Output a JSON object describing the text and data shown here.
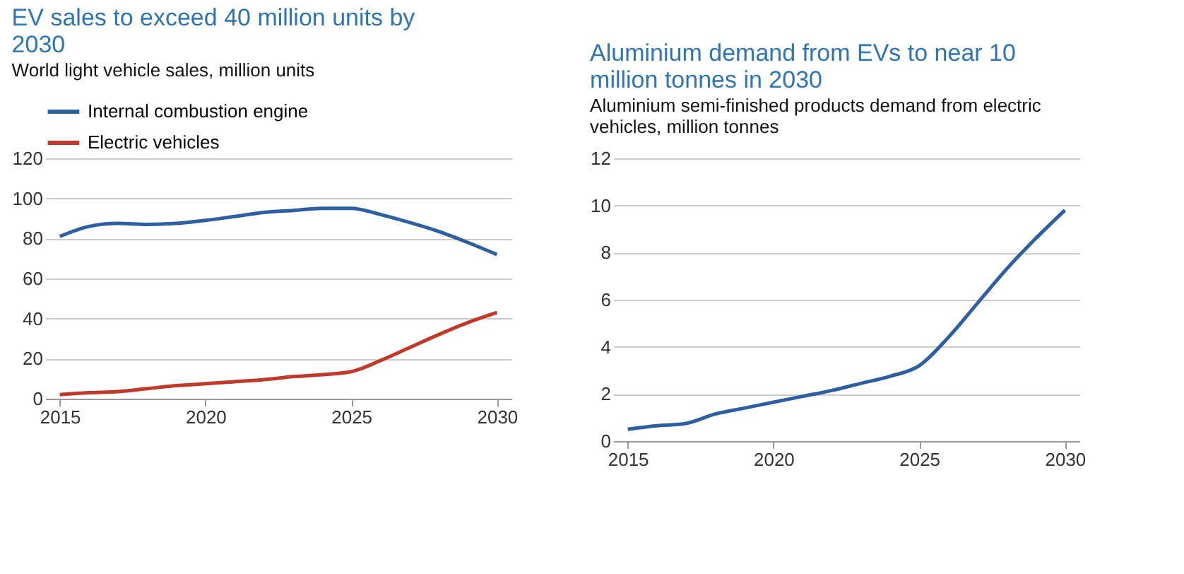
{
  "chart_data": [
    {
      "type": "line",
      "title": "EV sales to exceed 40 million units by 2030",
      "subtitle": "World light vehicle sales, million units",
      "x": [
        2015,
        2016,
        2017,
        2018,
        2019,
        2020,
        2021,
        2022,
        2023,
        2024,
        2025,
        2026,
        2027,
        2028,
        2029,
        2030
      ],
      "series": [
        {
          "name": "Internal combustion engine",
          "color": "#2e5fa3",
          "values": [
            81,
            86,
            87.5,
            87,
            87.5,
            89,
            91,
            93,
            94,
            95,
            95,
            92,
            88,
            83.5,
            78,
            72
          ]
        },
        {
          "name": "Electric vehicles",
          "color": "#c0392b",
          "values": [
            2,
            3,
            3.5,
            5,
            6.5,
            7.5,
            8.5,
            9.5,
            11,
            12,
            13.5,
            19,
            25.5,
            32,
            38,
            43
          ]
        }
      ],
      "xlim": [
        2014.5,
        2030.5
      ],
      "xticks": [
        2015,
        2020,
        2025,
        2030
      ],
      "ylim": [
        0,
        120
      ],
      "yticks": [
        0,
        20,
        40,
        60,
        80,
        100,
        120
      ],
      "grid": "y",
      "legend": "top",
      "marker": "none",
      "line_style": "solid"
    },
    {
      "type": "line",
      "title": "Aluminium demand from EVs to near 10 million tonnes in 2030",
      "subtitle": "Aluminium semi-finished products demand from electric vehicles, million tonnes",
      "x": [
        2015,
        2016,
        2017,
        2018,
        2019,
        2020,
        2021,
        2022,
        2023,
        2024,
        2025,
        2026,
        2027,
        2028,
        2029,
        2030
      ],
      "series": [
        {
          "color": "#2e5fa3",
          "values": [
            0.5,
            0.65,
            0.75,
            1.15,
            1.4,
            1.65,
            1.9,
            2.15,
            2.45,
            2.75,
            3.2,
            4.4,
            5.85,
            7.3,
            8.6,
            9.8
          ]
        }
      ],
      "xlim": [
        2014.5,
        2030.5
      ],
      "xticks": [
        2015,
        2020,
        2025,
        2030
      ],
      "ylim": [
        0,
        12
      ],
      "yticks": [
        0,
        2,
        4,
        6,
        8,
        10,
        12
      ],
      "grid": "y",
      "legend": false,
      "marker": "none",
      "line_style": "solid"
    }
  ]
}
